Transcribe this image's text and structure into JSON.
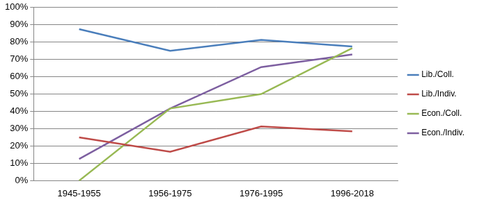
{
  "chart_data": {
    "type": "line",
    "categories": [
      "1945-1955",
      "1956-1975",
      "1976-1995",
      "1996-2018"
    ],
    "series": [
      {
        "name": "Lib./Coll.",
        "color": "#4a7ebb",
        "values": [
          87.5,
          75,
          81.3,
          77.5
        ]
      },
      {
        "name": "Lib./Indiv.",
        "color": "#be4b48",
        "values": [
          25,
          16.7,
          31.3,
          28.5
        ]
      },
      {
        "name": "Econ./Coll.",
        "color": "#98b954",
        "values": [
          0,
          41.7,
          50,
          76.5
        ]
      },
      {
        "name": "Econ./Indiv.",
        "color": "#7d5fa0",
        "values": [
          12.5,
          41.7,
          65.6,
          72.9
        ]
      }
    ],
    "ylim": [
      0,
      100
    ],
    "yticks": [
      {
        "value": 0,
        "label": "0%"
      },
      {
        "value": 10,
        "label": "10%"
      },
      {
        "value": 20,
        "label": "20%"
      },
      {
        "value": 30,
        "label": "30%"
      },
      {
        "value": 40,
        "label": "40%"
      },
      {
        "value": 50,
        "label": "50%"
      },
      {
        "value": 60,
        "label": "60%"
      },
      {
        "value": 70,
        "label": "70%"
      },
      {
        "value": 80,
        "label": "80%"
      },
      {
        "value": 90,
        "label": "90%"
      },
      {
        "value": 100,
        "label": "100%"
      }
    ],
    "grid": true,
    "legend": "right"
  }
}
